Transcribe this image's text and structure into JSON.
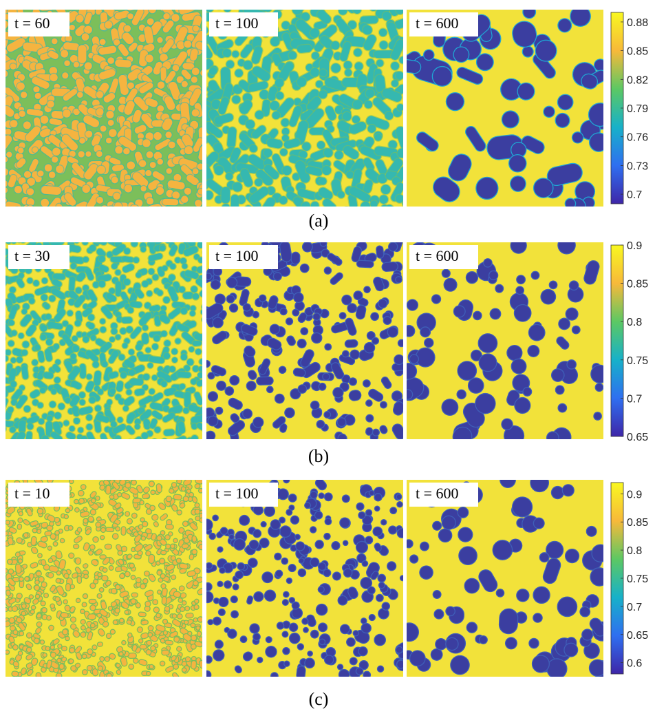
{
  "rows": [
    {
      "caption": "(a)",
      "panels": [
        {
          "label": "t = 60",
          "pattern": "labyrinth-weak"
        },
        {
          "label": "t = 100",
          "pattern": "labyrinth"
        },
        {
          "label": "t = 600",
          "pattern": "droplets-large"
        }
      ],
      "colorbar": {
        "ticks": [
          "0.88",
          "0.85",
          "0.82",
          "0.79",
          "0.76",
          "0.73",
          "0.7"
        ],
        "min": 0.69,
        "max": 0.89
      }
    },
    {
      "caption": "(b)",
      "panels": [
        {
          "label": "t = 30",
          "pattern": "labyrinth-fine"
        },
        {
          "label": "t = 100",
          "pattern": "droplets-elongated"
        },
        {
          "label": "t = 600",
          "pattern": "droplets"
        }
      ],
      "colorbar": {
        "ticks": [
          "0.9",
          "0.85",
          "0.8",
          "0.75",
          "0.7",
          "0.65"
        ],
        "min": 0.65,
        "max": 0.9
      }
    },
    {
      "caption": "(c)",
      "panels": [
        {
          "label": "t = 10",
          "pattern": "fine-dots"
        },
        {
          "label": "t = 100",
          "pattern": "many-droplets"
        },
        {
          "label": "t = 600",
          "pattern": "droplets"
        }
      ],
      "colorbar": {
        "ticks": [
          "0.9",
          "0.85",
          "0.8",
          "0.75",
          "0.7",
          "0.65",
          "0.6"
        ],
        "min": 0.58,
        "max": 0.92
      }
    }
  ],
  "colors": {
    "yellow": "#f2e23a",
    "orange": "#f5b440",
    "green": "#7cbf5a",
    "teal": "#35b8b0",
    "cyan": "#1fa6d4",
    "blue": "#3f5fb8",
    "navy": "#3b3ea0"
  }
}
